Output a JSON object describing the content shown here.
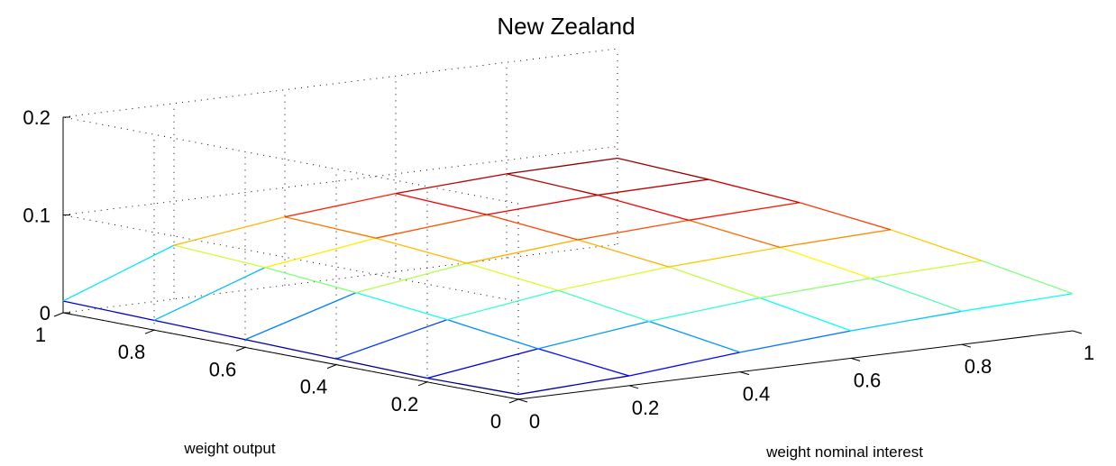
{
  "chart_data": {
    "type": "surface",
    "title": "New Zealand",
    "xlabel": "weight nominal interest",
    "ylabel": "weight output",
    "zlabel": "",
    "xlim": [
      0,
      1
    ],
    "ylim": [
      0,
      1
    ],
    "zlim": [
      0,
      0.2
    ],
    "x_ticks": [
      "0",
      "0.2",
      "0.4",
      "0.6",
      "0.8",
      "1"
    ],
    "y_ticks": [
      "0",
      "0.2",
      "0.4",
      "0.6",
      "0.8",
      "1"
    ],
    "z_ticks": [
      "0",
      "0.1",
      "0.2"
    ],
    "grid": true,
    "colormap": "jet",
    "grid_x": [
      0,
      0.2,
      0.4,
      0.6,
      0.8,
      1
    ],
    "grid_y": [
      0,
      0.2,
      0.4,
      0.6,
      0.8,
      1
    ],
    "z": [
      [
        0.005,
        0.004,
        0.006,
        0.008,
        0.01,
        0.012
      ],
      [
        0.01,
        0.02,
        0.032,
        0.042,
        0.05,
        0.055
      ],
      [
        0.02,
        0.034,
        0.048,
        0.058,
        0.066,
        0.07
      ],
      [
        0.028,
        0.044,
        0.058,
        0.068,
        0.076,
        0.08
      ],
      [
        0.034,
        0.05,
        0.064,
        0.074,
        0.082,
        0.086
      ],
      [
        0.038,
        0.054,
        0.068,
        0.078,
        0.084,
        0.088
      ]
    ]
  }
}
